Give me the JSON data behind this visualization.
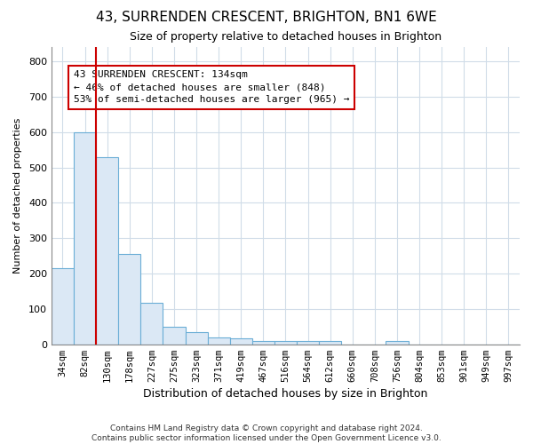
{
  "title": "43, SURRENDEN CRESCENT, BRIGHTON, BN1 6WE",
  "subtitle": "Size of property relative to detached houses in Brighton",
  "xlabel": "Distribution of detached houses by size in Brighton",
  "ylabel": "Number of detached properties",
  "footnote1": "Contains HM Land Registry data © Crown copyright and database right 2024.",
  "footnote2": "Contains public sector information licensed under the Open Government Licence v3.0.",
  "annotation_line1": "43 SURRENDEN CRESCENT: 134sqm",
  "annotation_line2": "← 46% of detached houses are smaller (848)",
  "annotation_line3": "53% of semi-detached houses are larger (965) →",
  "bin_labels": [
    "34sqm",
    "82sqm",
    "130sqm",
    "178sqm",
    "227sqm",
    "275sqm",
    "323sqm",
    "371sqm",
    "419sqm",
    "467sqm",
    "516sqm",
    "564sqm",
    "612sqm",
    "660sqm",
    "708sqm",
    "756sqm",
    "804sqm",
    "853sqm",
    "901sqm",
    "949sqm",
    "997sqm"
  ],
  "bar_heights": [
    215,
    600,
    530,
    255,
    118,
    50,
    35,
    20,
    18,
    10,
    10,
    10,
    10,
    0,
    0,
    10,
    0,
    0,
    0,
    0,
    0
  ],
  "bar_color": "#dbe8f5",
  "bar_edge_color": "#6baed6",
  "grid_color": "#d0dce8",
  "vline_x_idx": 2,
  "vline_color": "#cc0000",
  "annotation_box_color": "#cc0000",
  "ylim": [
    0,
    840
  ],
  "yticks": [
    0,
    100,
    200,
    300,
    400,
    500,
    600,
    700,
    800
  ],
  "bg_color": "#ffffff",
  "title_fontsize": 11,
  "subtitle_fontsize": 9
}
